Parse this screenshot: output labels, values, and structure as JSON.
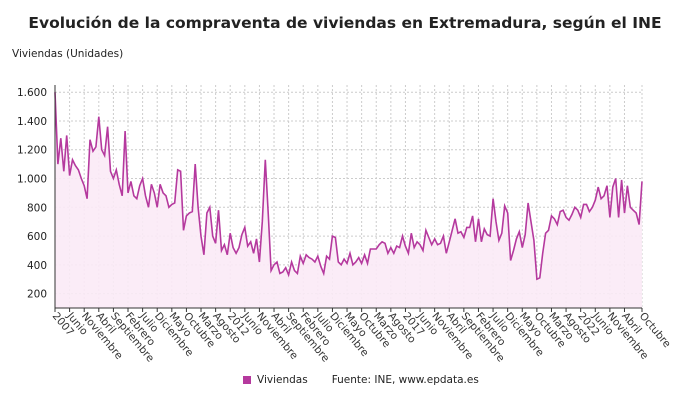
{
  "chart_data": {
    "type": "area",
    "title": "Evolución de la compraventa de viviendas en Extremadura, según el INE",
    "ylabel": "Viviendas (Unidades)",
    "xlabel": "",
    "ylim": [
      100,
      1650
    ],
    "yticks": [
      200,
      400,
      600,
      800,
      1000,
      1200,
      1400,
      1600
    ],
    "ytick_labels": [
      "200",
      "400",
      "600",
      "800",
      "1.000",
      "1.200",
      "1.400",
      "1.600"
    ],
    "x_start": "2007-01",
    "x_end": "2023-10",
    "x_tick_labels": [
      "2007",
      "Junio",
      "Noviembre",
      "Abril",
      "Septiembre",
      "Febrero",
      "Julio",
      "Diciembre",
      "Mayo",
      "Octubre",
      "Marzo",
      "Agosto",
      "2012",
      "Junio",
      "Noviembre",
      "Abril",
      "Septiembre",
      "Febrero",
      "Julio",
      "Diciembre",
      "Mayo",
      "Octubre",
      "Marzo",
      "Agosto",
      "2017",
      "Junio",
      "Noviembre",
      "Abril",
      "Septiembre",
      "Febrero",
      "Julio",
      "Diciembre",
      "Mayo",
      "Octubre",
      "Marzo",
      "Agosto",
      "2022",
      "Junio",
      "Noviembre",
      "Abril",
      "Octubre"
    ],
    "grid": true,
    "legend_position": "bottom",
    "series": [
      {
        "name": "Viviendas",
        "color": "#b5399e",
        "fill": "#fbeaf6",
        "values": [
          1600,
          1100,
          1280,
          1050,
          1300,
          1020,
          1130,
          1090,
          1060,
          1000,
          950,
          860,
          1270,
          1190,
          1220,
          1430,
          1200,
          1160,
          1360,
          1050,
          1000,
          1060,
          960,
          880,
          1330,
          900,
          980,
          880,
          860,
          950,
          1000,
          880,
          800,
          960,
          900,
          800,
          960,
          900,
          880,
          800,
          820,
          830,
          1060,
          1050,
          640,
          740,
          760,
          770,
          1100,
          800,
          600,
          470,
          760,
          800,
          600,
          550,
          780,
          500,
          540,
          470,
          620,
          520,
          480,
          520,
          610,
          660,
          530,
          560,
          480,
          580,
          420,
          700,
          1130,
          760,
          360,
          400,
          420,
          340,
          350,
          380,
          330,
          420,
          360,
          340,
          460,
          410,
          470,
          450,
          440,
          420,
          460,
          390,
          340,
          460,
          440,
          600,
          590,
          420,
          400,
          440,
          410,
          480,
          400,
          420,
          450,
          410,
          470,
          410,
          510,
          510,
          510,
          540,
          560,
          550,
          480,
          520,
          480,
          530,
          520,
          600,
          530,
          480,
          620,
          520,
          560,
          540,
          500,
          640,
          590,
          540,
          580,
          540,
          550,
          600,
          480,
          560,
          640,
          720,
          620,
          630,
          590,
          660,
          660,
          740,
          560,
          720,
          560,
          650,
          610,
          600,
          860,
          700,
          570,
          620,
          810,
          760,
          430,
          500,
          580,
          630,
          520,
          610,
          830,
          700,
          570,
          300,
          310,
          480,
          620,
          640,
          740,
          720,
          680,
          770,
          780,
          730,
          710,
          750,
          800,
          780,
          730,
          820,
          820,
          770,
          800,
          850,
          940,
          860,
          880,
          950,
          730,
          940,
          1000,
          730,
          990,
          760,
          950,
          800,
          780,
          760,
          680,
          980
        ]
      }
    ],
    "source": "Fuente: INE, www.epdata.es"
  }
}
